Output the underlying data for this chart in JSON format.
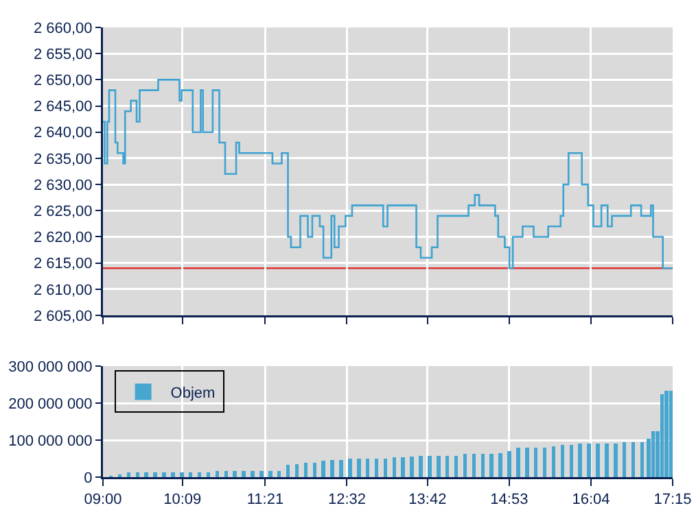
{
  "chart_data": [
    {
      "type": "step",
      "color": "#3fa3d1",
      "grid": true,
      "tick_labels": "y",
      "marker": "none",
      "x": [
        9.0,
        9.025,
        9.063,
        9.089,
        9.147,
        9.179,
        9.212,
        9.294,
        9.32,
        9.404,
        9.487,
        9.531,
        9.8,
        10.108,
        10.14,
        10.3,
        10.416,
        10.448,
        10.589,
        10.685,
        10.769,
        10.929,
        10.973,
        11.454,
        11.589,
        11.679,
        11.723,
        11.808,
        11.858,
        11.967,
        12.031,
        12.14,
        12.192,
        12.308,
        12.352,
        12.415,
        12.512,
        12.608,
        13.058,
        13.121,
        13.538,
        13.602,
        13.762,
        13.846,
        14.294,
        14.385,
        14.448,
        14.679,
        14.723,
        14.819,
        14.885,
        14.935,
        15.077,
        15.237,
        15.448,
        15.627,
        15.667,
        15.742,
        15.935,
        16.025,
        16.102,
        16.217,
        16.308,
        16.371,
        16.519,
        16.646,
        16.794,
        16.935,
        16.967,
        17.108,
        17.242
      ],
      "values": [
        2642,
        2634,
        2642,
        2648,
        2648,
        2638,
        2636,
        2634,
        2644,
        2646,
        2642,
        2648,
        2650,
        2646,
        2648,
        2640,
        2648,
        2640,
        2648,
        2638,
        2632,
        2638,
        2636,
        2634,
        2636,
        2620,
        2618,
        2618,
        2624,
        2620,
        2624,
        2622,
        2616,
        2624,
        2618,
        2622,
        2624,
        2626,
        2622,
        2626,
        2618,
        2616,
        2618,
        2624,
        2626,
        2628,
        2626,
        2624,
        2620,
        2618,
        2614,
        2620,
        2622,
        2620,
        2622,
        2624,
        2630,
        2636,
        2630,
        2626,
        2622,
        2626,
        2622,
        2624,
        2624,
        2626,
        2624,
        2626,
        2620,
        2614,
        2614
      ],
      "xlim": [
        9.0,
        17.25
      ],
      "xticks": [
        {
          "value": 9.0,
          "label": null
        },
        {
          "value": 10.15,
          "label": null
        },
        {
          "value": 11.35,
          "label": null
        },
        {
          "value": 12.533,
          "label": null
        },
        {
          "value": 13.7,
          "label": null
        },
        {
          "value": 14.883,
          "label": null
        },
        {
          "value": 16.067,
          "label": null
        },
        {
          "value": 17.25,
          "label": null
        }
      ],
      "ylim": [
        2605,
        2660
      ],
      "yticks": [
        {
          "value": 2605,
          "label": "2 605,00"
        },
        {
          "value": 2610,
          "label": "2 610,00"
        },
        {
          "value": 2615,
          "label": "2 615,00"
        },
        {
          "value": 2620,
          "label": "2 620,00"
        },
        {
          "value": 2625,
          "label": "2 625,00"
        },
        {
          "value": 2630,
          "label": "2 630,00"
        },
        {
          "value": 2635,
          "label": "2 635,00"
        },
        {
          "value": 2640,
          "label": "2 640,00"
        },
        {
          "value": 2645,
          "label": "2 645,00"
        },
        {
          "value": 2650,
          "label": "2 650,00"
        },
        {
          "value": 2655,
          "label": "2 655,00"
        },
        {
          "value": 2660,
          "label": "2 660,00"
        }
      ],
      "ref_lines": [
        {
          "axis": "y",
          "value": 2614,
          "color": "#e03030"
        }
      ]
    },
    {
      "type": "bar",
      "grid": true,
      "legend": "top left",
      "x": [
        9.115,
        9.244,
        9.372,
        9.5,
        9.628,
        9.756,
        9.885,
        10.013,
        10.141,
        10.269,
        10.397,
        10.526,
        10.654,
        10.782,
        10.91,
        11.038,
        11.167,
        11.295,
        11.423,
        11.551,
        11.679,
        11.808,
        11.936,
        12.064,
        12.192,
        12.321,
        12.449,
        12.577,
        12.705,
        12.833,
        12.962,
        13.09,
        13.218,
        13.346,
        13.474,
        13.603,
        13.731,
        13.859,
        13.987,
        14.115,
        14.244,
        14.372,
        14.5,
        14.628,
        14.756,
        14.885,
        15.013,
        15.141,
        15.269,
        15.397,
        15.526,
        15.654,
        15.782,
        15.91,
        16.038,
        16.167,
        16.295,
        16.423,
        16.551,
        16.679,
        16.808,
        16.904,
        16.968,
        17.032,
        17.096,
        17.16,
        17.231
      ],
      "series": [
        {
          "name": "Objem",
          "color": "#46a6d0",
          "values": [
            4000000,
            7500000,
            12500000,
            12500000,
            12500000,
            12500000,
            12500000,
            12500000,
            12500000,
            12500000,
            12500000,
            12500000,
            16000000,
            16000000,
            16000000,
            16000000,
            16000000,
            16000000,
            16000000,
            16000000,
            34000000,
            36000000,
            39000000,
            39000000,
            44000000,
            46000000,
            46000000,
            50000000,
            50000000,
            50000000,
            50000000,
            50000000,
            54000000,
            54000000,
            55000000,
            57500000,
            57500000,
            57500000,
            57500000,
            57500000,
            62500000,
            62500000,
            62500000,
            62500000,
            65000000,
            71000000,
            80000000,
            80000000,
            80000000,
            80000000,
            84000000,
            87500000,
            87500000,
            91000000,
            91000000,
            91000000,
            91000000,
            91000000,
            95000000,
            95000000,
            95000000,
            104000000,
            125000000,
            125000000,
            225000000,
            234000000,
            234000000
          ]
        }
      ],
      "xlim": [
        9.0,
        17.25
      ],
      "xticks": [
        {
          "value": 9.0,
          "label": "09:00"
        },
        {
          "value": 10.15,
          "label": "10:09"
        },
        {
          "value": 11.35,
          "label": "11:21"
        },
        {
          "value": 12.533,
          "label": "12:32"
        },
        {
          "value": 13.7,
          "label": "13:42"
        },
        {
          "value": 14.883,
          "label": "14:53"
        },
        {
          "value": 16.067,
          "label": "16:04"
        },
        {
          "value": 17.25,
          "label": "17:15"
        }
      ],
      "ylim": [
        0,
        300000000
      ],
      "yticks": [
        0,
        {
          "value": 100000000,
          "label": "100 000 000"
        },
        {
          "value": 200000000,
          "label": "200 000 000"
        },
        {
          "value": 300000000,
          "label": "300 000 000"
        }
      ]
    }
  ]
}
